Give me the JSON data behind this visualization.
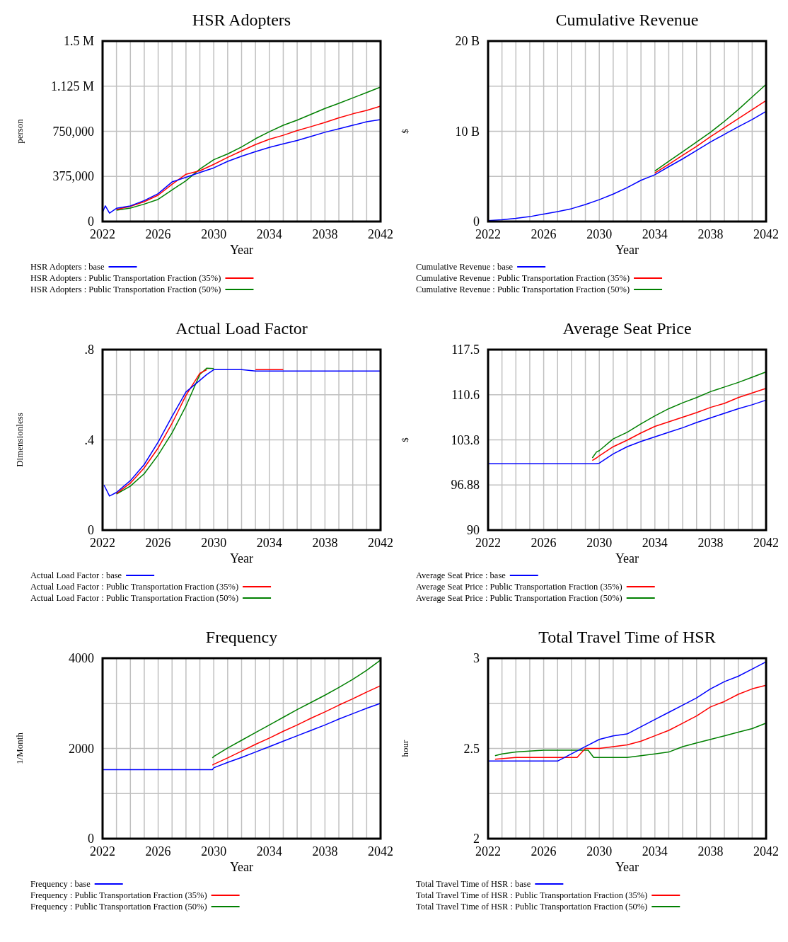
{
  "chart_data": [
    {
      "type": "line",
      "title": "HSR Adopters",
      "xlabel": "Year",
      "ylabel": "person",
      "xlim": [
        2022,
        2042
      ],
      "ylim": [
        0,
        1500000
      ],
      "xticks": [
        2022,
        {
          "value": 2023,
          "label": null
        },
        {
          "value": 2024,
          "label": null
        },
        {
          "value": 2025,
          "label": null
        },
        2026,
        {
          "value": 2027,
          "label": null
        },
        {
          "value": 2028,
          "label": null
        },
        {
          "value": 2029,
          "label": null
        },
        2030,
        {
          "value": 2031,
          "label": null
        },
        {
          "value": 2032,
          "label": null
        },
        {
          "value": 2033,
          "label": null
        },
        2034,
        {
          "value": 2035,
          "label": null
        },
        {
          "value": 2036,
          "label": null
        },
        {
          "value": 2037,
          "label": null
        },
        2038,
        {
          "value": 2039,
          "label": null
        },
        {
          "value": 2040,
          "label": null
        },
        {
          "value": 2041,
          "label": null
        },
        2042
      ],
      "yticks": [
        0,
        {
          "value": 375000,
          "label": "375,000"
        },
        {
          "value": 750000,
          "label": "750,000"
        },
        {
          "value": 1125000,
          "label": "1.125 M"
        },
        {
          "value": 1500000,
          "label": "1.5 M"
        }
      ],
      "grid": true,
      "legend": "bottom",
      "x": [
        2022,
        2022.2,
        2022.5,
        2023,
        2024,
        2025,
        2026,
        2027,
        2028,
        2029,
        2030,
        2031,
        2032,
        2033,
        2034,
        2035,
        2036,
        2037,
        2038,
        2039,
        2040,
        2041,
        2042
      ],
      "series": [
        {
          "name": "HSR Adopters : base",
          "color": "#0000ff",
          "values": [
            78000,
            130000,
            70000,
            110000,
            130000,
            174000,
            232000,
            329000,
            368000,
            407000,
            446000,
            500000,
            543000,
            581000,
            616000,
            645000,
            674000,
            707000,
            742000,
            771000,
            800000,
            829000,
            847000
          ]
        },
        {
          "name": "HSR Adopters : Public Transportation Fraction (35%)",
          "color": "#ff0000",
          "values": [
            null,
            null,
            null,
            100000,
            126000,
            165000,
            219000,
            310000,
            393000,
            422000,
            475000,
            533000,
            587000,
            640000,
            684000,
            717000,
            756000,
            789000,
            824000,
            862000,
            895000,
            924000,
            959000
          ]
        },
        {
          "name": "HSR Adopters : Public Transportation Fraction (50%)",
          "color": "#008000",
          "values": [
            null,
            null,
            null,
            94000,
            112000,
            145000,
            184000,
            262000,
            339000,
            436000,
            514000,
            562000,
            620000,
            688000,
            746000,
            800000,
            843000,
            891000,
            940000,
            982000,
            1027000,
            1072000,
            1118000
          ]
        }
      ]
    },
    {
      "type": "line",
      "title": "Cumulative Revenue",
      "xlabel": "Year",
      "ylabel": "$",
      "xlim": [
        2022,
        2042
      ],
      "ylim": [
        0,
        20
      ],
      "xticks": [
        2022,
        {
          "value": 2023,
          "label": null
        },
        {
          "value": 2024,
          "label": null
        },
        {
          "value": 2025,
          "label": null
        },
        2026,
        {
          "value": 2027,
          "label": null
        },
        {
          "value": 2028,
          "label": null
        },
        {
          "value": 2029,
          "label": null
        },
        2030,
        {
          "value": 2031,
          "label": null
        },
        {
          "value": 2032,
          "label": null
        },
        {
          "value": 2033,
          "label": null
        },
        2034,
        {
          "value": 2035,
          "label": null
        },
        {
          "value": 2036,
          "label": null
        },
        {
          "value": 2037,
          "label": null
        },
        2038,
        {
          "value": 2039,
          "label": null
        },
        {
          "value": 2040,
          "label": null
        },
        {
          "value": 2041,
          "label": null
        },
        2042
      ],
      "yticks": [
        0,
        {
          "value": 5,
          "label": null
        },
        {
          "value": 10,
          "label": "10 B"
        },
        {
          "value": 15,
          "label": null
        },
        {
          "value": 20,
          "label": "20 B"
        }
      ],
      "grid": true,
      "legend": "bottom",
      "x": [
        2022,
        2023,
        2024,
        2025,
        2026,
        2027,
        2028,
        2029,
        2030,
        2031,
        2032,
        2033,
        2034,
        2035,
        2036,
        2037,
        2038,
        2039,
        2040,
        2041,
        2042
      ],
      "series": [
        {
          "name": "Cumulative Revenue : base",
          "color": "#0000ff",
          "values": [
            0.1,
            0.2,
            0.35,
            0.54,
            0.83,
            1.1,
            1.42,
            1.88,
            2.42,
            3.04,
            3.76,
            4.57,
            5.19,
            6.08,
            6.94,
            7.88,
            8.82,
            9.65,
            10.5,
            11.3,
            12.2
          ]
        },
        {
          "name": "Cumulative Revenue : Public Transportation Fraction (35%)",
          "color": "#ff0000",
          "values": [
            null,
            null,
            null,
            null,
            null,
            null,
            null,
            null,
            null,
            null,
            null,
            null,
            5.38,
            6.34,
            7.34,
            8.33,
            9.41,
            10.4,
            11.4,
            12.4,
            13.4
          ]
        },
        {
          "name": "Cumulative Revenue : Public Transportation Fraction (50%)",
          "color": "#008000",
          "values": [
            null,
            null,
            null,
            null,
            null,
            null,
            null,
            null,
            null,
            null,
            null,
            null,
            5.59,
            6.67,
            7.74,
            8.82,
            9.89,
            11.1,
            12.4,
            13.8,
            15.2
          ]
        }
      ]
    },
    {
      "type": "line",
      "title": "Actual Load Factor",
      "xlabel": "Year",
      "ylabel": "Dimensionless",
      "xlim": [
        2022,
        2042
      ],
      "ylim": [
        0,
        0.8
      ],
      "xticks": [
        2022,
        {
          "value": 2023,
          "label": null
        },
        {
          "value": 2024,
          "label": null
        },
        {
          "value": 2025,
          "label": null
        },
        2026,
        {
          "value": 2027,
          "label": null
        },
        {
          "value": 2028,
          "label": null
        },
        {
          "value": 2029,
          "label": null
        },
        2030,
        {
          "value": 2031,
          "label": null
        },
        {
          "value": 2032,
          "label": null
        },
        {
          "value": 2033,
          "label": null
        },
        2034,
        {
          "value": 2035,
          "label": null
        },
        {
          "value": 2036,
          "label": null
        },
        {
          "value": 2037,
          "label": null
        },
        2038,
        {
          "value": 2039,
          "label": null
        },
        {
          "value": 2040,
          "label": null
        },
        {
          "value": 2041,
          "label": null
        },
        2042
      ],
      "yticks": [
        0,
        {
          "value": 0.2,
          "label": null
        },
        {
          "value": 0.4,
          "label": ".4"
        },
        {
          "value": 0.6,
          "label": null
        },
        {
          "value": 0.8,
          "label": ".8"
        }
      ],
      "grid": true,
      "legend": "bottom",
      "x": [
        2022.1,
        2022.5,
        2023,
        2024,
        2025,
        2026,
        2027,
        2028,
        2029,
        2029.5,
        2030,
        2031,
        2032,
        2033,
        2034,
        2035,
        2036,
        2037,
        2038,
        2039,
        2040,
        2041,
        2042
      ],
      "series": [
        {
          "name": "Actual Load Factor : base",
          "color": "#0000ff",
          "values": [
            0.2,
            0.151,
            0.167,
            0.219,
            0.291,
            0.39,
            0.504,
            0.612,
            0.664,
            0.69,
            0.711,
            0.711,
            0.711,
            0.705,
            0.705,
            0.705,
            0.705,
            0.705,
            0.705,
            0.705,
            0.705,
            0.705,
            0.705
          ]
        },
        {
          "name": "Actual Load Factor : Public Transportation Fraction (35%)",
          "color": "#ff0000",
          "values": [
            null,
            null,
            0.162,
            0.208,
            0.276,
            0.364,
            0.473,
            0.597,
            0.695,
            0.711,
            null,
            null,
            null,
            0.711,
            0.711,
            0.711,
            null,
            null,
            null,
            null,
            null,
            null,
            null
          ]
        },
        {
          "name": "Actual Load Factor : Public Transportation Fraction (50%)",
          "color": "#008000",
          "values": [
            null,
            null,
            0.16,
            0.195,
            0.25,
            0.333,
            0.431,
            0.55,
            0.69,
            0.718,
            0.716,
            null,
            null,
            null,
            null,
            null,
            null,
            null,
            null,
            null,
            null,
            null,
            null
          ]
        }
      ]
    },
    {
      "type": "line",
      "title": "Average Seat Price",
      "xlabel": "Year",
      "ylabel": "$",
      "xlim": [
        2022,
        2042
      ],
      "ylim": [
        90,
        117.5
      ],
      "xticks": [
        2022,
        {
          "value": 2023,
          "label": null
        },
        {
          "value": 2024,
          "label": null
        },
        {
          "value": 2025,
          "label": null
        },
        2026,
        {
          "value": 2027,
          "label": null
        },
        {
          "value": 2028,
          "label": null
        },
        {
          "value": 2029,
          "label": null
        },
        2030,
        {
          "value": 2031,
          "label": null
        },
        {
          "value": 2032,
          "label": null
        },
        {
          "value": 2033,
          "label": null
        },
        2034,
        {
          "value": 2035,
          "label": null
        },
        {
          "value": 2036,
          "label": null
        },
        {
          "value": 2037,
          "label": null
        },
        2038,
        {
          "value": 2039,
          "label": null
        },
        {
          "value": 2040,
          "label": null
        },
        {
          "value": 2041,
          "label": null
        },
        2042
      ],
      "yticks": [
        90,
        {
          "value": 96.875,
          "label": "96.88"
        },
        {
          "value": 103.75,
          "label": "103.8"
        },
        {
          "value": 110.625,
          "label": "110.6"
        },
        117.5
      ],
      "grid": true,
      "legend": "bottom",
      "x": [
        2022,
        2029.2,
        2029.5,
        2029.8,
        2030,
        2031,
        2032,
        2033,
        2034,
        2035,
        2036,
        2037,
        2038,
        2039,
        2040,
        2041,
        2042
      ],
      "series": [
        {
          "name": "Average Seat Price : base",
          "color": "#0000ff",
          "values": [
            100.1,
            100.1,
            100.1,
            100.1,
            100.2,
            101.6,
            102.7,
            103.5,
            104.2,
            104.9,
            105.6,
            106.4,
            107.1,
            107.8,
            108.5,
            109.1,
            109.8
          ]
        },
        {
          "name": "Average Seat Price : Public Transportation Fraction (35%)",
          "color": "#ff0000",
          "values": [
            null,
            null,
            100.6,
            101.0,
            101.3,
            102.7,
            103.7,
            104.8,
            105.8,
            106.5,
            107.2,
            107.9,
            108.7,
            109.3,
            110.2,
            110.9,
            111.6
          ]
        },
        {
          "name": "Average Seat Price : Public Transportation Fraction (50%)",
          "color": "#008000",
          "values": [
            null,
            null,
            101.0,
            101.9,
            102.1,
            103.9,
            104.9,
            106.2,
            107.4,
            108.5,
            109.4,
            110.2,
            111.1,
            111.8,
            112.5,
            113.3,
            114.1
          ]
        }
      ]
    },
    {
      "type": "line",
      "title": "Frequency",
      "xlabel": "Year",
      "ylabel": "1/Month",
      "xlim": [
        2022,
        2042
      ],
      "ylim": [
        0,
        4000
      ],
      "xticks": [
        2022,
        {
          "value": 2023,
          "label": null
        },
        {
          "value": 2024,
          "label": null
        },
        {
          "value": 2025,
          "label": null
        },
        2026,
        {
          "value": 2027,
          "label": null
        },
        {
          "value": 2028,
          "label": null
        },
        {
          "value": 2029,
          "label": null
        },
        2030,
        {
          "value": 2031,
          "label": null
        },
        {
          "value": 2032,
          "label": null
        },
        {
          "value": 2033,
          "label": null
        },
        2034,
        {
          "value": 2035,
          "label": null
        },
        {
          "value": 2036,
          "label": null
        },
        {
          "value": 2037,
          "label": null
        },
        2038,
        {
          "value": 2039,
          "label": null
        },
        {
          "value": 2040,
          "label": null
        },
        {
          "value": 2041,
          "label": null
        },
        2042
      ],
      "yticks": [
        0,
        {
          "value": 1000,
          "label": null
        },
        2000,
        {
          "value": 3000,
          "label": null
        },
        4000
      ],
      "grid": true,
      "legend": "bottom",
      "x": [
        2022,
        2029.2,
        2029.9,
        2030,
        2031,
        2032,
        2033,
        2034,
        2035,
        2036,
        2037,
        2038,
        2039,
        2040,
        2041,
        2042
      ],
      "series": [
        {
          "name": "Frequency : base",
          "color": "#0000ff",
          "values": [
            1530,
            1530,
            1530,
            1570,
            1690,
            1800,
            1920,
            2040,
            2160,
            2280,
            2400,
            2520,
            2650,
            2770,
            2890,
            3000
          ]
        },
        {
          "name": "Frequency : Public Transportation Fraction (35%)",
          "color": "#ff0000",
          "values": [
            null,
            null,
            1630,
            1650,
            1790,
            1940,
            2090,
            2230,
            2380,
            2520,
            2670,
            2810,
            2960,
            3100,
            3250,
            3390
          ]
        },
        {
          "name": "Frequency : Public Transportation Fraction (50%)",
          "color": "#008000",
          "values": [
            null,
            null,
            1790,
            1820,
            2010,
            2180,
            2350,
            2520,
            2690,
            2860,
            3020,
            3180,
            3350,
            3530,
            3730,
            3960
          ]
        }
      ]
    },
    {
      "type": "line",
      "title": "Total Travel Time of HSR",
      "xlabel": "Year",
      "ylabel": "hour",
      "xlim": [
        2022,
        2042
      ],
      "ylim": [
        2,
        3
      ],
      "xticks": [
        2022,
        {
          "value": 2023,
          "label": null
        },
        {
          "value": 2024,
          "label": null
        },
        {
          "value": 2025,
          "label": null
        },
        2026,
        {
          "value": 2027,
          "label": null
        },
        {
          "value": 2028,
          "label": null
        },
        {
          "value": 2029,
          "label": null
        },
        2030,
        {
          "value": 2031,
          "label": null
        },
        {
          "value": 2032,
          "label": null
        },
        {
          "value": 2033,
          "label": null
        },
        2034,
        {
          "value": 2035,
          "label": null
        },
        {
          "value": 2036,
          "label": null
        },
        {
          "value": 2037,
          "label": null
        },
        2038,
        {
          "value": 2039,
          "label": null
        },
        {
          "value": 2040,
          "label": null
        },
        {
          "value": 2041,
          "label": null
        },
        2042
      ],
      "yticks": [
        2,
        {
          "value": 2.25,
          "label": null
        },
        2.5,
        {
          "value": 2.75,
          "label": null
        },
        3
      ],
      "grid": true,
      "legend": "bottom",
      "series": [
        {
          "name": "Total Travel Time of HSR : base",
          "color": "#0000ff",
          "x": [
            2022,
            2027,
            2028,
            2029,
            2030,
            2031,
            2032,
            2033,
            2034,
            2035,
            2036,
            2037,
            2038,
            2039,
            2040,
            2041,
            2042
          ],
          "values": [
            2.43,
            2.43,
            2.47,
            2.51,
            2.55,
            2.57,
            2.58,
            2.62,
            2.66,
            2.7,
            2.74,
            2.78,
            2.83,
            2.87,
            2.9,
            2.94,
            2.98
          ]
        },
        {
          "name": "Total Travel Time of HSR : Public Transportation Fraction (35%)",
          "color": "#ff0000",
          "x": [
            2022.5,
            2024,
            2028.4,
            2029,
            2030,
            2031,
            2032,
            2033,
            2034,
            2035,
            2036,
            2037,
            2038,
            2039,
            2040,
            2041,
            2042
          ],
          "values": [
            2.44,
            2.45,
            2.45,
            2.5,
            2.5,
            2.51,
            2.52,
            2.54,
            2.57,
            2.6,
            2.64,
            2.68,
            2.73,
            2.76,
            2.8,
            2.83,
            2.85
          ]
        },
        {
          "name": "Total Travel Time of HSR : Public Transportation Fraction (50%)",
          "color": "#008000",
          "x": [
            2022.5,
            2023,
            2024,
            2026,
            2029.2,
            2029.6,
            2030,
            2032,
            2033,
            2034,
            2035,
            2036,
            2037,
            2038,
            2039,
            2040,
            2041,
            2042
          ],
          "values": [
            2.46,
            2.47,
            2.48,
            2.49,
            2.49,
            2.45,
            2.45,
            2.45,
            2.46,
            2.47,
            2.48,
            2.51,
            2.53,
            2.55,
            2.57,
            2.59,
            2.61,
            2.64
          ]
        }
      ]
    }
  ]
}
